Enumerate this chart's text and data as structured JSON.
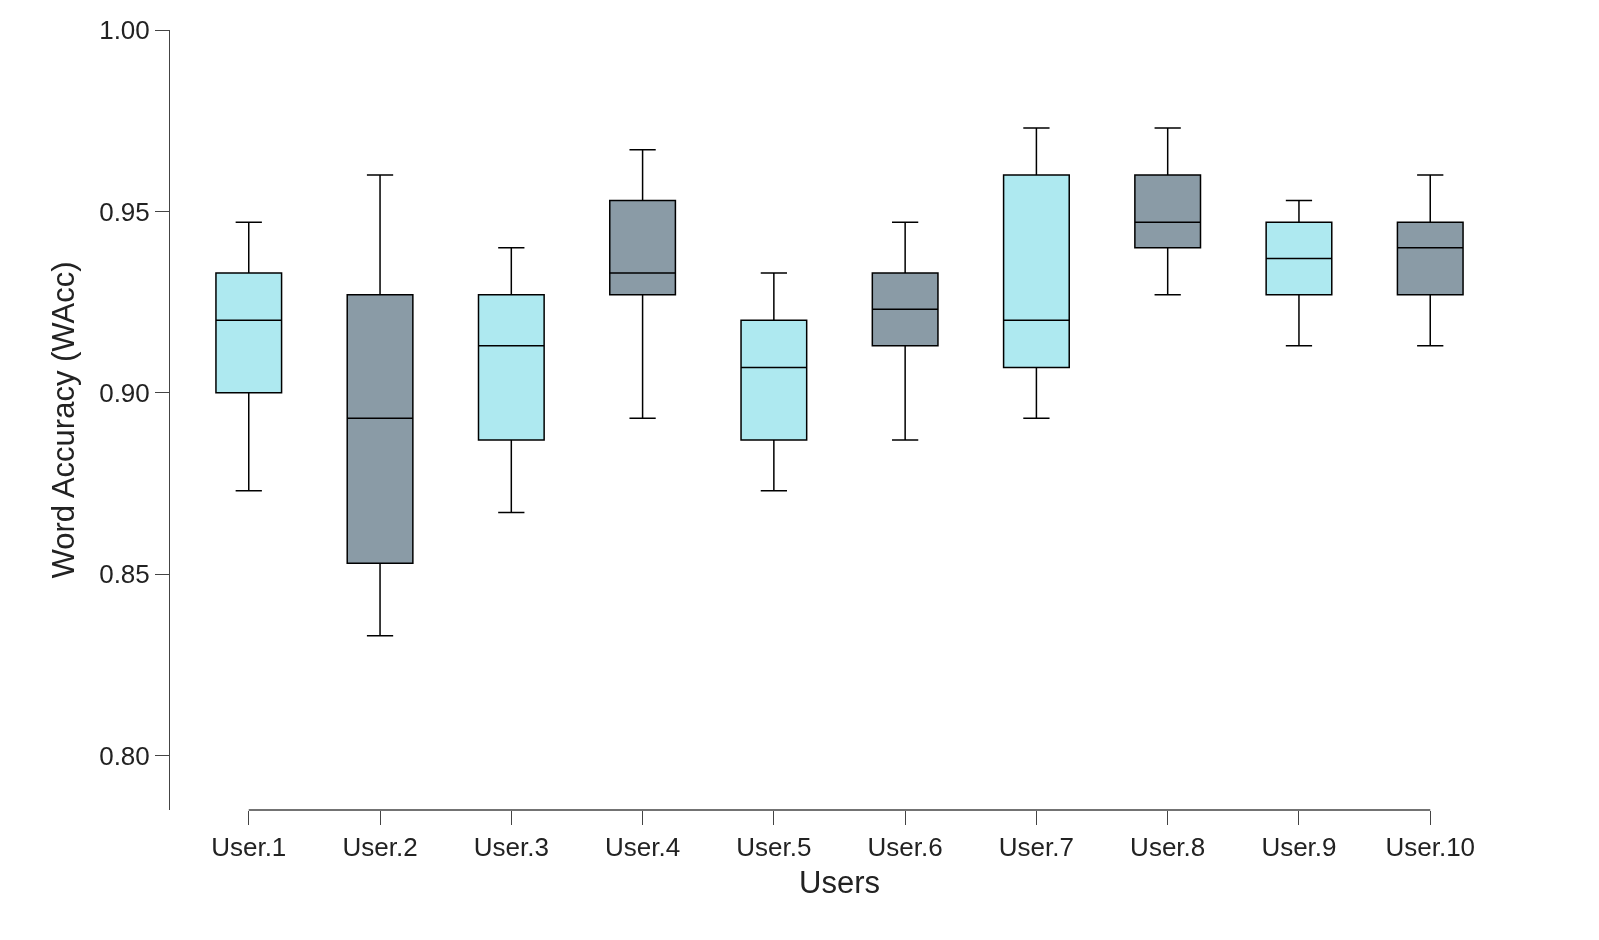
{
  "chart_data": {
    "type": "box",
    "xlabel": "Users",
    "ylabel": "Word Accuracy (WAcc)",
    "categories": [
      "User.1",
      "User.2",
      "User.3",
      "User.4",
      "User.5",
      "User.6",
      "User.7",
      "User.8",
      "User.9",
      "User.10"
    ],
    "colors": [
      "#aee9f0",
      "#8a9ba6",
      "#aee9f0",
      "#8a9ba6",
      "#aee9f0",
      "#8a9ba6",
      "#aee9f0",
      "#8a9ba6",
      "#aee9f0",
      "#8a9ba6"
    ],
    "boxes": [
      {
        "low": 0.873,
        "q1": 0.9,
        "median": 0.92,
        "q3": 0.933,
        "high": 0.947
      },
      {
        "low": 0.833,
        "q1": 0.853,
        "median": 0.893,
        "q3": 0.927,
        "high": 0.96
      },
      {
        "low": 0.867,
        "q1": 0.887,
        "median": 0.913,
        "q3": 0.927,
        "high": 0.94
      },
      {
        "low": 0.893,
        "q1": 0.927,
        "median": 0.933,
        "q3": 0.953,
        "high": 0.967
      },
      {
        "low": 0.873,
        "q1": 0.887,
        "median": 0.907,
        "q3": 0.92,
        "high": 0.933
      },
      {
        "low": 0.887,
        "q1": 0.913,
        "median": 0.923,
        "q3": 0.933,
        "high": 0.947
      },
      {
        "low": 0.893,
        "q1": 0.907,
        "median": 0.92,
        "q3": 0.96,
        "high": 0.973
      },
      {
        "low": 0.927,
        "q1": 0.94,
        "median": 0.947,
        "q3": 0.96,
        "high": 0.973
      },
      {
        "low": 0.913,
        "q1": 0.927,
        "median": 0.937,
        "q3": 0.947,
        "high": 0.953
      },
      {
        "low": 0.913,
        "q1": 0.927,
        "median": 0.94,
        "q3": 0.947,
        "high": 0.96
      }
    ],
    "ylim": [
      0.785,
      1.0
    ],
    "yticks": [
      {
        "value": 0.8,
        "label": "0.80"
      },
      {
        "value": 0.85,
        "label": "0.85"
      },
      {
        "value": 0.9,
        "label": "0.90"
      },
      {
        "value": 0.95,
        "label": "0.95"
      },
      {
        "value": 1.0,
        "label": "1.00"
      }
    ]
  }
}
